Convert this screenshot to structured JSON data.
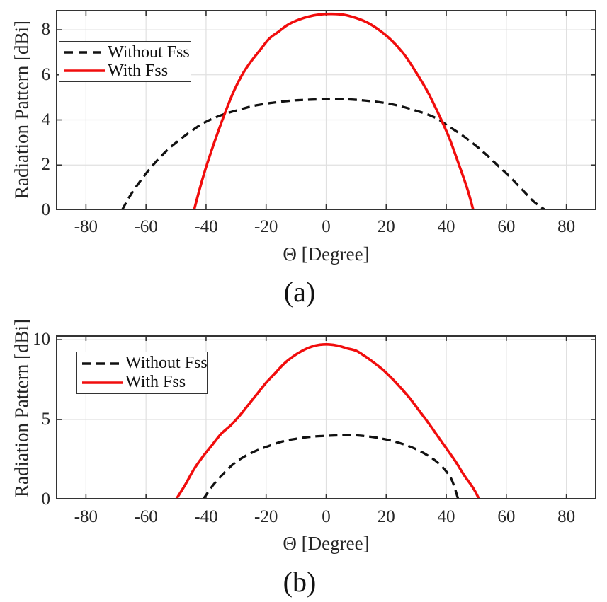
{
  "figure": {
    "background": "#ffffff",
    "panel_a_caption": "(a)",
    "panel_b_caption": "(b)"
  },
  "chart_data": [
    {
      "type": "line",
      "caption": "(a)",
      "xlabel": "Θ [Degree]",
      "ylabel": "Radiation Pattern [dBi]",
      "legend": [
        "Without Fss",
        "With Fss"
      ],
      "legend_position": "top-left",
      "grid": true,
      "xlim": [
        -90,
        90
      ],
      "ylim": [
        0,
        8.88
      ],
      "xticks": [
        -80,
        -60,
        -40,
        -20,
        0,
        20,
        40,
        60,
        80
      ],
      "yticks": [
        0,
        2,
        4,
        6,
        8
      ],
      "colors": {
        "grid": "#e0e0e0",
        "axis": "#333333",
        "text": "#262626"
      },
      "series": [
        {
          "name": "Without Fss",
          "color": "#111111",
          "dash": [
            12,
            7
          ],
          "width": 3.3,
          "points": [
            [
              -68,
              0
            ],
            [
              -65,
              0.7
            ],
            [
              -61,
              1.45
            ],
            [
              -57,
              2.1
            ],
            [
              -53,
              2.65
            ],
            [
              -49,
              3.1
            ],
            [
              -45,
              3.5
            ],
            [
              -41,
              3.85
            ],
            [
              -37,
              4.1
            ],
            [
              -33,
              4.3
            ],
            [
              -29,
              4.45
            ],
            [
              -25,
              4.6
            ],
            [
              -21,
              4.7
            ],
            [
              -17,
              4.78
            ],
            [
              -13,
              4.84
            ],
            [
              -9,
              4.88
            ],
            [
              -5,
              4.9
            ],
            [
              0,
              4.92
            ],
            [
              5,
              4.92
            ],
            [
              9,
              4.9
            ],
            [
              13,
              4.86
            ],
            [
              17,
              4.8
            ],
            [
              21,
              4.72
            ],
            [
              25,
              4.6
            ],
            [
              29,
              4.45
            ],
            [
              33,
              4.28
            ],
            [
              37,
              4.05
            ],
            [
              41,
              3.7
            ],
            [
              45,
              3.35
            ],
            [
              49,
              2.95
            ],
            [
              53,
              2.5
            ],
            [
              57,
              2.0
            ],
            [
              61,
              1.5
            ],
            [
              65,
              0.95
            ],
            [
              69,
              0.4
            ],
            [
              73,
              0
            ]
          ]
        },
        {
          "name": "With Fss",
          "color": "#f10d0d",
          "dash": null,
          "width": 3.6,
          "points": [
            [
              -44,
              0
            ],
            [
              -42,
              1.0
            ],
            [
              -40,
              1.9
            ],
            [
              -37,
              3.1
            ],
            [
              -34,
              4.2
            ],
            [
              -31,
              5.2
            ],
            [
              -28,
              6.0
            ],
            [
              -25,
              6.6
            ],
            [
              -22,
              7.1
            ],
            [
              -19,
              7.6
            ],
            [
              -16,
              7.9
            ],
            [
              -13,
              8.2
            ],
            [
              -10,
              8.4
            ],
            [
              -6,
              8.58
            ],
            [
              -2,
              8.68
            ],
            [
              2,
              8.7
            ],
            [
              6,
              8.66
            ],
            [
              10,
              8.52
            ],
            [
              14,
              8.3
            ],
            [
              18,
              7.95
            ],
            [
              22,
              7.5
            ],
            [
              26,
              6.9
            ],
            [
              30,
              6.1
            ],
            [
              34,
              5.2
            ],
            [
              38,
              4.1
            ],
            [
              41,
              3.2
            ],
            [
              44,
              2.1
            ],
            [
              47,
              0.95
            ],
            [
              49,
              0
            ]
          ]
        }
      ]
    },
    {
      "type": "line",
      "caption": "(b)",
      "xlabel": "Θ [Degree]",
      "ylabel": "Radiation Pattern [dBi]",
      "legend": [
        "Without Fss",
        "With Fss"
      ],
      "legend_position": "top-left",
      "grid": true,
      "xlim": [
        -90,
        90
      ],
      "ylim": [
        0,
        10.27
      ],
      "xticks": [
        -80,
        -60,
        -40,
        -20,
        0,
        20,
        40,
        60,
        80
      ],
      "yticks": [
        0,
        5,
        10
      ],
      "colors": {
        "grid": "#e0e0e0",
        "axis": "#333333",
        "text": "#262626"
      },
      "series": [
        {
          "name": "Without Fss",
          "color": "#111111",
          "dash": [
            12,
            7
          ],
          "width": 3.3,
          "points": [
            [
              -41,
              0
            ],
            [
              -39,
              0.55
            ],
            [
              -37,
              1.05
            ],
            [
              -34,
              1.65
            ],
            [
              -31,
              2.2
            ],
            [
              -28,
              2.6
            ],
            [
              -25,
              2.9
            ],
            [
              -22,
              3.15
            ],
            [
              -19,
              3.35
            ],
            [
              -16,
              3.55
            ],
            [
              -13,
              3.7
            ],
            [
              -10,
              3.8
            ],
            [
              -7,
              3.88
            ],
            [
              -4,
              3.94
            ],
            [
              0,
              3.98
            ],
            [
              4,
              4.01
            ],
            [
              7,
              4.03
            ],
            [
              10,
              4.01
            ],
            [
              13,
              3.96
            ],
            [
              16,
              3.89
            ],
            [
              19,
              3.79
            ],
            [
              22,
              3.66
            ],
            [
              25,
              3.5
            ],
            [
              28,
              3.3
            ],
            [
              31,
              3.05
            ],
            [
              34,
              2.73
            ],
            [
              37,
              2.33
            ],
            [
              40,
              1.75
            ],
            [
              42,
              1.15
            ],
            [
              44,
              0
            ]
          ]
        },
        {
          "name": "With Fss",
          "color": "#f10d0d",
          "dash": null,
          "width": 3.6,
          "points": [
            [
              -50,
              0
            ],
            [
              -47,
              0.9
            ],
            [
              -44,
              1.9
            ],
            [
              -41,
              2.7
            ],
            [
              -38,
              3.4
            ],
            [
              -35,
              4.1
            ],
            [
              -32,
              4.6
            ],
            [
              -29,
              5.2
            ],
            [
              -26,
              5.9
            ],
            [
              -23,
              6.6
            ],
            [
              -20,
              7.3
            ],
            [
              -17,
              7.9
            ],
            [
              -14,
              8.5
            ],
            [
              -11,
              8.95
            ],
            [
              -8,
              9.3
            ],
            [
              -5,
              9.55
            ],
            [
              -2,
              9.68
            ],
            [
              1,
              9.7
            ],
            [
              4,
              9.62
            ],
            [
              7,
              9.45
            ],
            [
              10,
              9.3
            ],
            [
              13,
              8.95
            ],
            [
              16,
              8.55
            ],
            [
              19,
              8.1
            ],
            [
              22,
              7.55
            ],
            [
              25,
              6.95
            ],
            [
              28,
              6.3
            ],
            [
              31,
              5.55
            ],
            [
              34,
              4.8
            ],
            [
              37,
              4.0
            ],
            [
              40,
              3.2
            ],
            [
              43,
              2.4
            ],
            [
              46,
              1.5
            ],
            [
              49,
              0.7
            ],
            [
              51,
              0
            ]
          ]
        }
      ]
    }
  ]
}
